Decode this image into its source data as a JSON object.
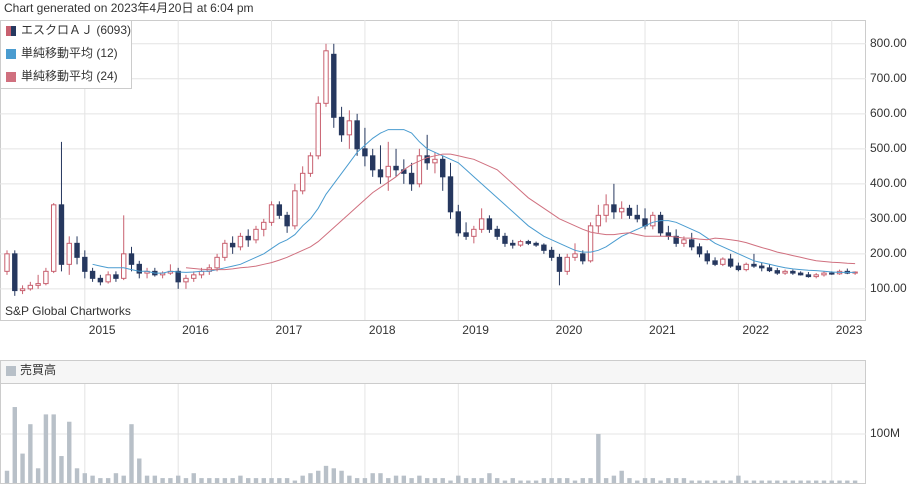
{
  "header": "Chart generated on 2023年4月20日 at 6:04 pm",
  "chart_data": [
    {
      "type": "candlestick",
      "annotation": "S&P Global Chartworks",
      "ylim": [
        11,
        868
      ],
      "yticks": [
        {
          "value": 100,
          "label": "100.00"
        },
        {
          "value": 200,
          "label": "200.00"
        },
        {
          "value": 300,
          "label": "300.00"
        },
        {
          "value": 400,
          "label": "400.00"
        },
        {
          "value": 500,
          "label": "500.00"
        },
        {
          "value": 600,
          "label": "600.00"
        },
        {
          "value": 700,
          "label": "700.00"
        },
        {
          "value": 800,
          "label": "800.00"
        }
      ],
      "xlim": [
        -0.9,
        110.4
      ],
      "xticks": [
        {
          "value": 10,
          "label": "2015"
        },
        {
          "value": 22,
          "label": "2016"
        },
        {
          "value": 34,
          "label": "2017"
        },
        {
          "value": 46,
          "label": "2018"
        },
        {
          "value": 58,
          "label": "2019"
        },
        {
          "value": 70,
          "label": "2020"
        },
        {
          "value": 82,
          "label": "2021"
        },
        {
          "value": 94,
          "label": "2022"
        },
        {
          "value": 106,
          "label": "2023"
        }
      ],
      "grid": true,
      "legend": "top-left",
      "series": [
        {
          "name": "エスクロＡＪ (6093)",
          "kind": "candles",
          "color": "#26385f",
          "up_color": "#c8606f",
          "open": [
            150,
            200,
            95,
            100,
            110,
            115,
            150,
            340,
            170,
            230,
            190,
            150,
            130,
            120,
            140,
            130,
            200,
            170,
            145,
            150,
            140,
            145,
            150,
            120,
            130,
            140,
            150,
            160,
            190,
            230,
            220,
            250,
            240,
            270,
            290,
            340,
            310,
            280,
            380,
            430,
            480,
            630,
            770,
            590,
            540,
            580,
            500,
            480,
            440,
            420,
            450,
            440,
            430,
            400,
            480,
            460,
            470,
            420,
            320,
            260,
            250,
            270,
            300,
            270,
            250,
            230,
            225,
            235,
            230,
            225,
            210,
            190,
            150,
            190,
            200,
            180,
            280,
            310,
            340,
            320,
            330,
            310,
            300,
            280,
            310,
            260,
            250,
            230,
            240,
            220,
            200,
            180,
            170,
            185,
            165,
            155,
            170,
            165,
            160,
            152,
            145,
            150,
            145,
            140,
            135,
            140,
            145,
            143,
            150,
            145
          ],
          "high": [
            210,
            210,
            110,
            120,
            140,
            160,
            345,
            520,
            250,
            250,
            210,
            160,
            140,
            150,
            150,
            310,
            220,
            180,
            160,
            160,
            150,
            170,
            160,
            140,
            150,
            160,
            170,
            200,
            240,
            250,
            260,
            270,
            280,
            300,
            350,
            350,
            320,
            400,
            450,
            490,
            650,
            800,
            800,
            620,
            610,
            600,
            560,
            500,
            510,
            520,
            500,
            470,
            460,
            500,
            540,
            490,
            480,
            460,
            340,
            290,
            280,
            330,
            310,
            280,
            260,
            240,
            240,
            240,
            235,
            230,
            220,
            200,
            200,
            230,
            210,
            290,
            340,
            370,
            400,
            350,
            340,
            340,
            330,
            320,
            320,
            280,
            270,
            250,
            260,
            230,
            210,
            190,
            190,
            200,
            175,
            175,
            200,
            175,
            170,
            160,
            155,
            155,
            150,
            148,
            145,
            150,
            150,
            155,
            158,
            150
          ],
          "low": [
            140,
            80,
            85,
            95,
            100,
            110,
            145,
            150,
            140,
            170,
            130,
            120,
            110,
            115,
            120,
            125,
            150,
            130,
            130,
            135,
            130,
            140,
            100,
            100,
            120,
            130,
            140,
            150,
            180,
            200,
            210,
            220,
            230,
            250,
            280,
            300,
            260,
            270,
            370,
            420,
            470,
            620,
            560,
            520,
            500,
            480,
            450,
            420,
            400,
            380,
            420,
            400,
            380,
            390,
            440,
            430,
            380,
            300,
            250,
            240,
            230,
            260,
            260,
            240,
            220,
            215,
            220,
            225,
            220,
            200,
            180,
            110,
            140,
            180,
            170,
            175,
            260,
            290,
            300,
            300,
            300,
            290,
            270,
            270,
            250,
            240,
            220,
            220,
            210,
            190,
            170,
            165,
            165,
            160,
            150,
            150,
            160,
            150,
            148,
            140,
            140,
            140,
            138,
            132,
            130,
            135,
            140,
            140,
            142,
            140
          ],
          "close": [
            200,
            95,
            100,
            110,
            115,
            150,
            340,
            170,
            230,
            190,
            150,
            130,
            120,
            140,
            130,
            200,
            170,
            145,
            150,
            140,
            145,
            150,
            120,
            130,
            140,
            150,
            160,
            190,
            230,
            220,
            250,
            240,
            270,
            290,
            340,
            310,
            280,
            380,
            430,
            480,
            630,
            780,
            590,
            540,
            580,
            500,
            480,
            440,
            420,
            450,
            440,
            430,
            400,
            480,
            460,
            470,
            420,
            320,
            260,
            250,
            270,
            300,
            270,
            250,
            230,
            225,
            235,
            230,
            225,
            210,
            190,
            150,
            190,
            200,
            180,
            280,
            310,
            340,
            320,
            330,
            310,
            300,
            280,
            310,
            260,
            250,
            230,
            240,
            220,
            200,
            180,
            170,
            185,
            165,
            155,
            170,
            165,
            160,
            152,
            145,
            150,
            145,
            140,
            135,
            140,
            145,
            143,
            150,
            145,
            148
          ]
        },
        {
          "name": "単純移動平均 (12)",
          "kind": "line",
          "color": "#4a9cd0",
          "values": [
            null,
            null,
            null,
            null,
            null,
            null,
            null,
            null,
            null,
            null,
            null,
            170,
            165,
            160,
            160,
            160,
            155,
            150,
            150,
            145,
            145,
            150,
            148,
            147,
            148,
            150,
            150,
            155,
            160,
            165,
            170,
            180,
            190,
            200,
            215,
            230,
            240,
            255,
            280,
            300,
            330,
            370,
            400,
            430,
            460,
            490,
            510,
            530,
            545,
            555,
            555,
            555,
            545,
            520,
            500,
            490,
            480,
            470,
            460,
            440,
            420,
            400,
            380,
            360,
            340,
            320,
            300,
            280,
            265,
            250,
            240,
            230,
            220,
            210,
            205,
            205,
            210,
            220,
            235,
            250,
            260,
            270,
            280,
            290,
            295,
            295,
            290,
            280,
            270,
            260,
            245,
            230,
            220,
            210,
            200,
            190,
            180,
            175,
            170,
            165,
            160,
            157,
            155,
            153,
            152,
            150,
            148,
            147,
            147,
            147
          ]
        },
        {
          "name": "単純移動平均 (24)",
          "kind": "line",
          "color": "#d0707f",
          "values": [
            null,
            null,
            null,
            null,
            null,
            null,
            null,
            null,
            null,
            null,
            null,
            null,
            null,
            null,
            null,
            null,
            null,
            null,
            null,
            null,
            null,
            null,
            null,
            160,
            158,
            156,
            155,
            155,
            155,
            157,
            160,
            162,
            165,
            170,
            175,
            182,
            190,
            200,
            210,
            220,
            235,
            255,
            275,
            295,
            315,
            335,
            355,
            375,
            390,
            405,
            420,
            440,
            455,
            465,
            475,
            480,
            485,
            485,
            480,
            475,
            470,
            460,
            450,
            440,
            420,
            400,
            380,
            360,
            345,
            330,
            315,
            300,
            290,
            280,
            270,
            262,
            258,
            255,
            255,
            258,
            260,
            255,
            250,
            250,
            250,
            250,
            248,
            245,
            245,
            242,
            240,
            245,
            243,
            240,
            237,
            232,
            225,
            218,
            212,
            205,
            200,
            195,
            190,
            185,
            180,
            178,
            176,
            175,
            173,
            172
          ]
        }
      ]
    },
    {
      "type": "bar",
      "title": "売買高",
      "color": "#b8c0c8",
      "ylim": [
        0,
        202000000
      ],
      "yticks": [
        {
          "value": 100000000,
          "label": "100M"
        }
      ],
      "values": [
        25000000,
        155000000,
        60000000,
        120000000,
        30000000,
        140000000,
        140000000,
        55000000,
        125000000,
        30000000,
        20000000,
        15000000,
        10000000,
        10000000,
        20000000,
        15000000,
        120000000,
        50000000,
        15000000,
        15000000,
        10000000,
        10000000,
        15000000,
        10000000,
        20000000,
        10000000,
        10000000,
        10000000,
        10000000,
        10000000,
        15000000,
        10000000,
        10000000,
        10000000,
        10000000,
        10000000,
        10000000,
        5000000,
        15000000,
        20000000,
        25000000,
        35000000,
        30000000,
        25000000,
        15000000,
        10000000,
        10000000,
        20000000,
        20000000,
        10000000,
        15000000,
        15000000,
        10000000,
        15000000,
        10000000,
        10000000,
        10000000,
        5000000,
        15000000,
        10000000,
        10000000,
        10000000,
        20000000,
        10000000,
        5000000,
        10000000,
        5000000,
        5000000,
        5000000,
        10000000,
        10000000,
        10000000,
        10000000,
        5000000,
        10000000,
        10000000,
        100000000,
        10000000,
        15000000,
        25000000,
        10000000,
        5000000,
        10000000,
        10000000,
        5000000,
        10000000,
        10000000,
        10000000,
        5000000,
        5000000,
        5000000,
        5000000,
        5000000,
        5000000,
        15000000,
        5000000,
        5000000,
        5000000,
        5000000,
        5000000,
        5000000,
        5000000,
        5000000,
        5000000,
        5000000,
        5000000,
        5000000,
        5000000,
        5000000,
        5000000
      ]
    }
  ]
}
